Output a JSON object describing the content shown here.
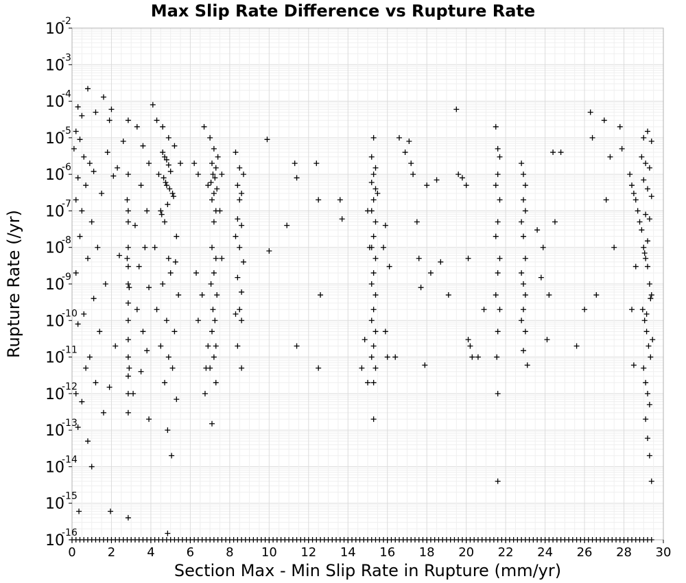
{
  "chart_data": {
    "type": "scatter",
    "title": "Max Slip Rate Difference vs Rupture Rate",
    "xlabel": "Section Max - Min Slip Rate in Rupture (mm/yr)",
    "ylabel": "Rupture Rate (/yr)",
    "xlim": [
      0,
      30
    ],
    "ylim": [
      1e-16,
      0.01
    ],
    "yscale": "log",
    "grid": true,
    "legend": "none",
    "marker": "plus",
    "marker_color": "#000000",
    "x_ticks": [
      "0",
      "2",
      "4",
      "6",
      "8",
      "10",
      "12",
      "14",
      "16",
      "18",
      "20",
      "22",
      "24",
      "26",
      "28",
      "30"
    ],
    "y_ticks": [
      {
        "base": "10",
        "exp": "-16"
      },
      {
        "base": "10",
        "exp": "-15"
      },
      {
        "base": "10",
        "exp": "-14"
      },
      {
        "base": "10",
        "exp": "-13"
      },
      {
        "base": "10",
        "exp": "-12"
      },
      {
        "base": "10",
        "exp": "-11"
      },
      {
        "base": "10",
        "exp": "-10"
      },
      {
        "base": "10",
        "exp": "-9"
      },
      {
        "base": "10",
        "exp": "-8"
      },
      {
        "base": "10",
        "exp": "-7"
      },
      {
        "base": "10",
        "exp": "-6"
      },
      {
        "base": "10",
        "exp": "-5"
      },
      {
        "base": "10",
        "exp": "-4"
      },
      {
        "base": "10",
        "exp": "-3"
      },
      {
        "base": "10",
        "exp": "-2"
      }
    ],
    "points": [
      [
        0.8,
        0.00022
      ],
      [
        1.6,
        0.00013
      ],
      [
        0.3,
        7e-05
      ],
      [
        0.5,
        4e-05
      ],
      [
        1.2,
        5e-05
      ],
      [
        2.0,
        6e-05
      ],
      [
        1.9,
        3e-05
      ],
      [
        0.2,
        1.5e-05
      ],
      [
        0.4,
        9e-06
      ],
      [
        0.1,
        5e-06
      ],
      [
        0.6,
        3e-06
      ],
      [
        0.9,
        2e-06
      ],
      [
        1.1,
        1.2e-06
      ],
      [
        0.3,
        8e-07
      ],
      [
        0.7,
        5e-07
      ],
      [
        1.5,
        3e-07
      ],
      [
        0.2,
        2e-07
      ],
      [
        2.3,
        1.5e-06
      ],
      [
        2.6,
        8e-06
      ],
      [
        1.8,
        4e-06
      ],
      [
        2.1,
        9e-07
      ],
      [
        0.5,
        1e-07
      ],
      [
        1.0,
        5e-08
      ],
      [
        0.4,
        2e-08
      ],
      [
        1.3,
        1e-08
      ],
      [
        0.8,
        5e-09
      ],
      [
        0.2,
        2e-09
      ],
      [
        1.7,
        1e-09
      ],
      [
        2.4,
        6e-09
      ],
      [
        1.1,
        4e-10
      ],
      [
        0.6,
        1.5e-10
      ],
      [
        0.3,
        8e-11
      ],
      [
        1.4,
        5e-11
      ],
      [
        2.2,
        2e-11
      ],
      [
        0.9,
        1e-11
      ],
      [
        0.7,
        5e-12
      ],
      [
        1.2,
        2e-12
      ],
      [
        0.2,
        1e-12
      ],
      [
        1.9,
        1.5e-12
      ],
      [
        0.5,
        6e-13
      ],
      [
        1.6,
        3e-13
      ],
      [
        0.3,
        1.2e-13
      ],
      [
        0.8,
        5e-14
      ],
      [
        1.0,
        1e-14
      ],
      [
        0.35,
        6e-16
      ],
      [
        1.95,
        6e-16
      ],
      [
        2.85,
        4e-16
      ],
      [
        2.85,
        3e-05
      ],
      [
        2.85,
        1e-06
      ],
      [
        2.85,
        1e-07
      ],
      [
        2.85,
        5e-08
      ],
      [
        2.85,
        1e-08
      ],
      [
        2.85,
        3e-09
      ],
      [
        2.85,
        1e-09
      ],
      [
        2.85,
        3e-10
      ],
      [
        2.85,
        1e-10
      ],
      [
        2.85,
        3e-11
      ],
      [
        2.85,
        1e-11
      ],
      [
        2.85,
        3e-12
      ],
      [
        2.85,
        1e-12
      ],
      [
        2.85,
        3e-13
      ],
      [
        2.8,
        2e-07
      ],
      [
        2.8,
        5e-09
      ],
      [
        2.9,
        8e-10
      ],
      [
        2.9,
        5e-12
      ],
      [
        3.3,
        2e-05
      ],
      [
        3.6,
        6e-06
      ],
      [
        3.9,
        2e-06
      ],
      [
        3.5,
        5e-07
      ],
      [
        3.8,
        1e-07
      ],
      [
        3.2,
        4e-08
      ],
      [
        3.7,
        1e-08
      ],
      [
        3.4,
        3e-09
      ],
      [
        3.9,
        8e-10
      ],
      [
        3.3,
        2e-10
      ],
      [
        3.6,
        5e-11
      ],
      [
        3.8,
        1.5e-11
      ],
      [
        3.5,
        4e-12
      ],
      [
        3.1,
        1e-12
      ],
      [
        3.9,
        2e-13
      ],
      [
        4.1,
        8e-05
      ],
      [
        4.3,
        3e-05
      ],
      [
        4.6,
        2e-05
      ],
      [
        4.9,
        1e-05
      ],
      [
        5.2,
        6e-06
      ],
      [
        5.5,
        2e-06
      ],
      [
        4.4,
        1e-06
      ],
      [
        4.8,
        5e-07
      ],
      [
        5.1,
        3e-07
      ],
      [
        4.5,
        1e-07
      ],
      [
        4.7,
        5e-08
      ],
      [
        5.3,
        2e-08
      ],
      [
        4.2,
        1e-08
      ],
      [
        4.9,
        5e-09
      ],
      [
        5.0,
        2e-09
      ],
      [
        4.6,
        1e-09
      ],
      [
        5.4,
        5e-10
      ],
      [
        4.3,
        2e-10
      ],
      [
        4.8,
        1e-10
      ],
      [
        5.2,
        5e-11
      ],
      [
        4.5,
        2e-11
      ],
      [
        4.9,
        1e-11
      ],
      [
        5.1,
        5e-12
      ],
      [
        4.7,
        2e-12
      ],
      [
        5.3,
        7e-13
      ],
      [
        4.85,
        1e-13
      ],
      [
        5.05,
        2e-14
      ],
      [
        4.85,
        1.5e-16
      ],
      [
        4.6,
        4e-06
      ],
      [
        4.7,
        3e-06
      ],
      [
        4.8,
        2.5e-06
      ],
      [
        4.9,
        1.8e-06
      ],
      [
        5.0,
        1.2e-06
      ],
      [
        4.65,
        8e-07
      ],
      [
        4.75,
        6e-07
      ],
      [
        4.95,
        4e-07
      ],
      [
        5.15,
        2.5e-07
      ],
      [
        4.85,
        1.5e-07
      ],
      [
        4.55,
        8e-08
      ],
      [
        5.25,
        4e-09
      ],
      [
        6.2,
        2e-06
      ],
      [
        6.4,
        1e-06
      ],
      [
        6.7,
        2e-05
      ],
      [
        6.9,
        5e-07
      ],
      [
        6.3,
        2e-09
      ],
      [
        6.6,
        5e-10
      ],
      [
        6.4,
        1e-10
      ],
      [
        6.9,
        2e-11
      ],
      [
        6.8,
        5e-12
      ],
      [
        6.75,
        1e-12
      ],
      [
        7.0,
        1e-05
      ],
      [
        7.2,
        5e-06
      ],
      [
        7.4,
        3e-06
      ],
      [
        7.1,
        2e-06
      ],
      [
        7.3,
        1.5e-06
      ],
      [
        7.15,
        1e-06
      ],
      [
        7.25,
        8e-07
      ],
      [
        7.05,
        6e-07
      ],
      [
        7.35,
        4e-07
      ],
      [
        7.2,
        3e-07
      ],
      [
        7.1,
        2e-07
      ],
      [
        7.3,
        1e-07
      ],
      [
        7.2,
        5e-08
      ],
      [
        7.1,
        1e-08
      ],
      [
        7.3,
        5e-09
      ],
      [
        7.2,
        2e-09
      ],
      [
        7.05,
        1e-09
      ],
      [
        7.35,
        5e-10
      ],
      [
        7.15,
        2e-10
      ],
      [
        7.25,
        1e-10
      ],
      [
        7.1,
        5e-11
      ],
      [
        7.3,
        2e-11
      ],
      [
        7.2,
        1e-11
      ],
      [
        7.0,
        5e-12
      ],
      [
        7.3,
        2e-12
      ],
      [
        7.1,
        1.5e-13
      ],
      [
        7.6,
        1e-06
      ],
      [
        7.5,
        1e-07
      ],
      [
        7.6,
        5e-09
      ],
      [
        8.3,
        4e-06
      ],
      [
        8.5,
        1.5e-06
      ],
      [
        8.7,
        1e-06
      ],
      [
        8.4,
        5e-07
      ],
      [
        8.6,
        3e-07
      ],
      [
        8.5,
        2e-07
      ],
      [
        8.4,
        6e-08
      ],
      [
        8.6,
        4e-08
      ],
      [
        8.3,
        2e-08
      ],
      [
        8.5,
        1e-08
      ],
      [
        8.7,
        4e-09
      ],
      [
        8.4,
        1.5e-09
      ],
      [
        8.6,
        6e-10
      ],
      [
        8.5,
        2e-10
      ],
      [
        8.3,
        1.5e-10
      ],
      [
        8.6,
        1e-10
      ],
      [
        8.4,
        2e-11
      ],
      [
        8.6,
        5e-12
      ],
      [
        9.9,
        9e-06
      ],
      [
        10.0,
        8e-09
      ],
      [
        11.3,
        2e-06
      ],
      [
        11.4,
        8e-07
      ],
      [
        11.4,
        2e-11
      ],
      [
        12.4,
        2e-06
      ],
      [
        12.5,
        2e-07
      ],
      [
        12.6,
        5e-10
      ],
      [
        12.5,
        5e-12
      ],
      [
        13.6,
        2e-07
      ],
      [
        13.7,
        6e-08
      ],
      [
        14.7,
        5e-12
      ],
      [
        14.85,
        3e-11
      ],
      [
        15.0,
        1e-07
      ],
      [
        15.0,
        2e-12
      ],
      [
        10.9,
        4e-08
      ],
      [
        15.3,
        1e-05
      ],
      [
        15.2,
        3e-06
      ],
      [
        15.4,
        1.5e-06
      ],
      [
        15.3,
        1e-06
      ],
      [
        15.2,
        6e-07
      ],
      [
        15.4,
        4e-07
      ],
      [
        15.3,
        2e-07
      ],
      [
        15.2,
        1e-07
      ],
      [
        15.4,
        5e-08
      ],
      [
        15.3,
        2e-08
      ],
      [
        15.2,
        1e-08
      ],
      [
        15.4,
        5e-09
      ],
      [
        15.3,
        2e-09
      ],
      [
        15.2,
        1e-09
      ],
      [
        15.4,
        5e-10
      ],
      [
        15.3,
        2e-10
      ],
      [
        15.2,
        1e-10
      ],
      [
        15.4,
        5e-11
      ],
      [
        15.3,
        2e-11
      ],
      [
        15.2,
        1e-11
      ],
      [
        15.4,
        5e-12
      ],
      [
        15.3,
        2e-12
      ],
      [
        15.3,
        2e-13
      ],
      [
        15.1,
        1e-08
      ],
      [
        15.5,
        3e-07
      ],
      [
        15.8,
        1e-08
      ],
      [
        15.9,
        4e-08
      ],
      [
        16.0,
        1e-11
      ],
      [
        16.1,
        3e-09
      ],
      [
        15.9,
        5e-11
      ],
      [
        16.4,
        1e-11
      ],
      [
        16.6,
        1e-05
      ],
      [
        16.9,
        4e-06
      ],
      [
        17.1,
        8e-06
      ],
      [
        17.2,
        2e-06
      ],
      [
        17.3,
        1e-06
      ],
      [
        17.5,
        5e-08
      ],
      [
        17.6,
        5e-09
      ],
      [
        17.7,
        8e-10
      ],
      [
        17.9,
        6e-12
      ],
      [
        18.0,
        5e-07
      ],
      [
        18.2,
        2e-09
      ],
      [
        18.5,
        7e-07
      ],
      [
        18.7,
        4e-09
      ],
      [
        19.1,
        5e-10
      ],
      [
        19.5,
        6e-05
      ],
      [
        19.6,
        1e-06
      ],
      [
        19.8,
        8e-07
      ],
      [
        20.0,
        5e-07
      ],
      [
        20.1,
        5e-09
      ],
      [
        20.2,
        2e-11
      ],
      [
        20.3,
        1e-11
      ],
      [
        20.1,
        3e-11
      ],
      [
        20.6,
        1e-11
      ],
      [
        20.9,
        2e-10
      ],
      [
        21.5,
        2e-05
      ],
      [
        21.6,
        5e-06
      ],
      [
        21.7,
        3e-06
      ],
      [
        21.6,
        1e-06
      ],
      [
        21.5,
        5e-07
      ],
      [
        21.7,
        2e-07
      ],
      [
        21.6,
        5e-08
      ],
      [
        21.5,
        2e-08
      ],
      [
        21.7,
        5e-09
      ],
      [
        21.6,
        2e-09
      ],
      [
        21.5,
        5e-10
      ],
      [
        21.7,
        2e-10
      ],
      [
        21.6,
        5e-11
      ],
      [
        21.55,
        1e-11
      ],
      [
        21.6,
        1e-12
      ],
      [
        21.6,
        4e-15
      ],
      [
        22.8,
        2e-06
      ],
      [
        22.9,
        1e-06
      ],
      [
        23.0,
        5e-07
      ],
      [
        22.9,
        2e-07
      ],
      [
        23.0,
        1e-07
      ],
      [
        22.8,
        5e-08
      ],
      [
        22.9,
        2e-08
      ],
      [
        23.0,
        5e-09
      ],
      [
        22.8,
        2e-09
      ],
      [
        22.9,
        1e-09
      ],
      [
        23.0,
        5e-10
      ],
      [
        22.9,
        2e-10
      ],
      [
        22.8,
        1e-10
      ],
      [
        23.0,
        5e-11
      ],
      [
        22.9,
        1.5e-11
      ],
      [
        23.1,
        6e-12
      ],
      [
        23.6,
        3e-08
      ],
      [
        23.8,
        1.5e-09
      ],
      [
        23.9,
        1e-08
      ],
      [
        24.1,
        3e-11
      ],
      [
        24.2,
        5e-10
      ],
      [
        24.4,
        4e-06
      ],
      [
        24.5,
        5e-08
      ],
      [
        24.8,
        4e-06
      ],
      [
        25.6,
        2e-11
      ],
      [
        26.0,
        2e-10
      ],
      [
        26.3,
        5e-05
      ],
      [
        26.4,
        1e-05
      ],
      [
        26.6,
        5e-10
      ],
      [
        27.0,
        3e-05
      ],
      [
        27.1,
        2e-07
      ],
      [
        27.3,
        3e-06
      ],
      [
        27.5,
        1e-08
      ],
      [
        27.8,
        2e-05
      ],
      [
        27.9,
        5e-06
      ],
      [
        28.3,
        1e-06
      ],
      [
        28.4,
        5e-07
      ],
      [
        28.5,
        3e-07
      ],
      [
        28.6,
        2e-07
      ],
      [
        28.7,
        1e-07
      ],
      [
        28.8,
        5e-08
      ],
      [
        28.9,
        3e-08
      ],
      [
        29.0,
        1e-08
      ],
      [
        29.1,
        5e-09
      ],
      [
        29.2,
        3e-09
      ],
      [
        29.3,
        1e-09
      ],
      [
        29.4,
        5e-10
      ],
      [
        28.95,
        2e-10
      ],
      [
        29.05,
        1e-10
      ],
      [
        29.15,
        5e-11
      ],
      [
        29.25,
        2e-11
      ],
      [
        29.35,
        1e-11
      ],
      [
        29.0,
        5e-12
      ],
      [
        29.1,
        2e-12
      ],
      [
        29.2,
        1e-12
      ],
      [
        29.3,
        5e-13
      ],
      [
        29.1,
        2e-13
      ],
      [
        29.2,
        6e-14
      ],
      [
        29.3,
        2e-14
      ],
      [
        29.4,
        4e-15
      ],
      [
        29.2,
        1.5e-05
      ],
      [
        29.4,
        8e-06
      ],
      [
        29.0,
        1e-05
      ],
      [
        28.6,
        3e-09
      ],
      [
        28.4,
        2e-10
      ],
      [
        28.5,
        6e-12
      ],
      [
        28.9,
        3e-06
      ],
      [
        29.1,
        2e-06
      ],
      [
        29.3,
        1.5e-06
      ],
      [
        29.0,
        7e-07
      ],
      [
        29.2,
        4e-07
      ],
      [
        29.4,
        2.5e-07
      ],
      [
        29.1,
        8e-08
      ],
      [
        29.3,
        6e-08
      ],
      [
        29.2,
        1.5e-08
      ],
      [
        29.05,
        7e-09
      ],
      [
        29.35,
        4e-10
      ],
      [
        29.15,
        1.5e-10
      ],
      [
        29.45,
        3e-11
      ]
    ],
    "floor_points_x": [
      0.0,
      0.2,
      0.4,
      0.6,
      0.8,
      1.0,
      1.2,
      1.4,
      1.6,
      1.8,
      2.0,
      2.2,
      2.4,
      2.6,
      2.8,
      3.0,
      3.2,
      3.4,
      3.6,
      3.8,
      4.0,
      4.2,
      4.4,
      4.6,
      4.8,
      5.0,
      5.2,
      5.4,
      5.6,
      5.8,
      6.0,
      6.2,
      6.4,
      6.6,
      6.8,
      7.0,
      7.2,
      7.4,
      7.6,
      7.8,
      8.0,
      8.2,
      8.4,
      8.6,
      8.8,
      9.0,
      9.2,
      9.4,
      9.6,
      9.8,
      10.0,
      10.2,
      10.4,
      10.6,
      10.8,
      11.0,
      11.2,
      11.4,
      11.6,
      11.8,
      12.0,
      12.2,
      12.4,
      12.6,
      12.8,
      13.0,
      13.2,
      13.4,
      13.6,
      13.8,
      14.0,
      14.2,
      14.4,
      14.6,
      14.8,
      15.0,
      15.2,
      15.4,
      15.6,
      15.8,
      16.0,
      16.2,
      16.4,
      16.6,
      16.8,
      17.0,
      17.2,
      17.4,
      17.6,
      17.8,
      18.0,
      18.2,
      18.4,
      18.6,
      18.8,
      19.0,
      19.2,
      19.4,
      19.6,
      19.8,
      20.0,
      20.2,
      20.4,
      20.6,
      20.8,
      21.0,
      21.2,
      21.4,
      21.6,
      21.8,
      22.0,
      22.2,
      22.4,
      22.6,
      22.8,
      23.0,
      23.2,
      23.4,
      23.6,
      23.8,
      24.0,
      24.2,
      24.4,
      24.6,
      24.8,
      25.0,
      25.2,
      25.4,
      25.6,
      25.8,
      26.0,
      26.2,
      26.4,
      26.6,
      26.8,
      27.0,
      27.2,
      27.4,
      27.6,
      27.8,
      28.0,
      28.2,
      28.4,
      28.6,
      28.8,
      29.0,
      29.2,
      29.4
    ],
    "floor_value": 1e-16
  }
}
